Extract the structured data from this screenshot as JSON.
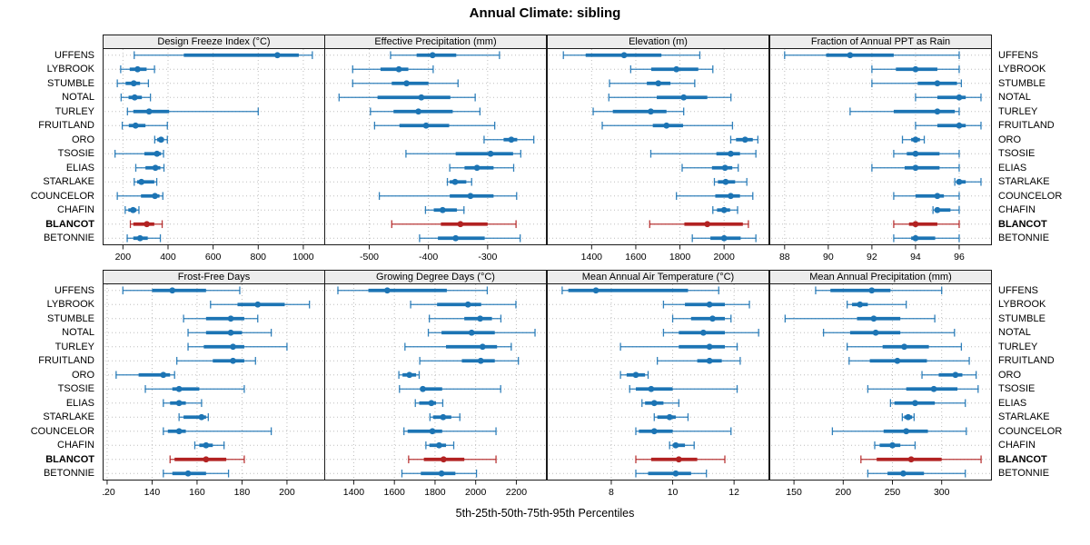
{
  "title": "Annual Climate: sibling",
  "caption": "5th-25th-50th-75th-95th Percentiles",
  "colors": {
    "series": "#1c74b4",
    "highlight": "#b22222",
    "grid": "#bdbdbd",
    "strip_bg": "#ededed",
    "border": "#1a1a1a"
  },
  "sites": [
    "UFFENS",
    "LYBROOK",
    "STUMBLE",
    "NOTAL",
    "TURLEY",
    "FRUITLAND",
    "ORO",
    "TSOSIE",
    "ELIAS",
    "STARLAKE",
    "COUNCELOR",
    "CHAFIN",
    "BLANCOT",
    "BETONNIE"
  ],
  "highlight_site": "BLANCOT",
  "percentile_order": [
    5,
    25,
    50,
    75,
    95
  ],
  "chart_data": [
    {
      "type": "error-bar",
      "title": "Design Freeze Index (°C)",
      "row": 0,
      "col": 0,
      "xlim": [
        110,
        1097
      ],
      "ticks": [
        200,
        400,
        600,
        800,
        1000
      ],
      "values": [
        [
          250,
          470,
          885,
          980,
          1040
        ],
        [
          190,
          230,
          265,
          305,
          340
        ],
        [
          175,
          212,
          248,
          276,
          313
        ],
        [
          192,
          225,
          252,
          284,
          322
        ],
        [
          220,
          246,
          316,
          405,
          800
        ],
        [
          197,
          226,
          256,
          300,
          397
        ],
        [
          341,
          352,
          369,
          382,
          397
        ],
        [
          165,
          295,
          351,
          369,
          380
        ],
        [
          257,
          300,
          344,
          366,
          382
        ],
        [
          250,
          263,
          282,
          339,
          350
        ],
        [
          175,
          280,
          342,
          362,
          377
        ],
        [
          210,
          224,
          245,
          260,
          271
        ],
        [
          233,
          246,
          306,
          339,
          374
        ],
        [
          219,
          246,
          276,
          310,
          366
        ]
      ]
    },
    {
      "type": "error-bar",
      "title": "Effective Precipitation (mm)",
      "row": 0,
      "col": 1,
      "xlim": [
        -576,
        -200
      ],
      "ticks": [
        -500,
        -400,
        -300
      ],
      "values": [
        [
          -464,
          -420,
          -393,
          -353,
          -280
        ],
        [
          -528,
          -481,
          -450,
          -434,
          -392
        ],
        [
          -528,
          -462,
          -437,
          -400,
          -350
        ],
        [
          -551,
          -486,
          -412,
          -363,
          -321
        ],
        [
          -498,
          -459,
          -417,
          -359,
          -313
        ],
        [
          -491,
          -449,
          -404,
          -365,
          -288
        ],
        [
          -306,
          -273,
          -260,
          -250,
          -222
        ],
        [
          -438,
          -354,
          -295,
          -257,
          -244
        ],
        [
          -364,
          -339,
          -318,
          -290,
          -256
        ],
        [
          -368,
          -364,
          -355,
          -336,
          -327
        ],
        [
          -483,
          -364,
          -329,
          -290,
          -251
        ],
        [
          -405,
          -391,
          -376,
          -352,
          -340
        ],
        [
          -462,
          -379,
          -346,
          -300,
          -252
        ],
        [
          -415,
          -384,
          -354,
          -305,
          -245
        ]
      ]
    },
    {
      "type": "error-bar",
      "title": "Elevation (m)",
      "row": 0,
      "col": 2,
      "xlim": [
        1197,
        2205
      ],
      "ticks": [
        1400,
        1600,
        1800,
        2000
      ],
      "values": [
        [
          1272,
          1373,
          1547,
          1716,
          1890
        ],
        [
          1577,
          1670,
          1784,
          1883,
          1949
        ],
        [
          1481,
          1650,
          1702,
          1757,
          1867
        ],
        [
          1478,
          1695,
          1817,
          1924,
          2031
        ],
        [
          1407,
          1496,
          1668,
          1739,
          1817
        ],
        [
          1448,
          1677,
          1739,
          1814,
          2038
        ],
        [
          2030,
          2054,
          2095,
          2130,
          2153
        ],
        [
          1668,
          1965,
          2030,
          2072,
          2144
        ],
        [
          1810,
          1945,
          2004,
          2037,
          2064
        ],
        [
          1956,
          1972,
          2007,
          2050,
          2103
        ],
        [
          1784,
          1960,
          2030,
          2072,
          2130
        ],
        [
          1949,
          1968,
          2000,
          2027,
          2061
        ],
        [
          1663,
          1820,
          1924,
          2085,
          2110
        ],
        [
          1856,
          1938,
          2000,
          2075,
          2144
        ]
      ]
    },
    {
      "type": "error-bar",
      "title": "Fraction of Annual PPT as Rain",
      "row": 0,
      "col": 3,
      "xlim": [
        87.3,
        97.5
      ],
      "ticks": [
        88,
        90,
        92,
        94,
        96
      ],
      "values": [
        [
          88.0,
          89.9,
          91.0,
          93.0,
          96.0
        ],
        [
          92.0,
          93.1,
          94.0,
          95.0,
          96.0
        ],
        [
          92.0,
          94.1,
          95.0,
          95.9,
          96.1
        ],
        [
          94.0,
          95.0,
          96.0,
          96.3,
          97.0
        ],
        [
          91.0,
          93.0,
          95.0,
          95.8,
          96.0
        ],
        [
          94.0,
          95.0,
          96.0,
          96.3,
          97.0
        ],
        [
          93.4,
          93.8,
          94.0,
          94.2,
          94.4
        ],
        [
          93.0,
          93.6,
          94.0,
          95.1,
          96.0
        ],
        [
          92.0,
          93.5,
          94.0,
          95.1,
          96.0
        ],
        [
          95.8,
          95.9,
          96.0,
          96.3,
          97.0
        ],
        [
          93.0,
          94.0,
          95.0,
          95.3,
          96.0
        ],
        [
          94.8,
          94.9,
          95.0,
          95.6,
          96.0
        ],
        [
          93.0,
          93.7,
          94.0,
          95.0,
          96.0
        ],
        [
          93.0,
          93.8,
          94.0,
          94.9,
          96.0
        ]
      ]
    },
    {
      "type": "error-bar",
      "title": "Frost-Free Days",
      "row": 1,
      "col": 0,
      "xlim": [
        118,
        217
      ],
      "ticks": [
        120,
        140,
        160,
        180,
        200
      ],
      "values": [
        [
          127,
          140,
          149,
          164,
          179
        ],
        [
          166,
          178,
          187,
          199,
          210
        ],
        [
          154,
          164,
          175,
          181,
          187
        ],
        [
          156,
          164,
          175,
          180,
          193
        ],
        [
          156,
          163,
          176,
          181,
          200
        ],
        [
          151,
          167,
          176,
          181,
          186
        ],
        [
          124,
          134,
          145,
          148,
          150
        ],
        [
          137,
          149,
          152,
          161,
          181
        ],
        [
          145,
          148,
          152,
          155,
          162
        ],
        [
          152,
          154,
          162,
          164,
          165
        ],
        [
          145,
          147,
          152,
          155,
          193
        ],
        [
          159,
          161,
          164,
          167,
          172
        ],
        [
          148,
          150,
          164,
          173,
          181
        ],
        [
          145,
          149,
          156,
          164,
          174
        ]
      ]
    },
    {
      "type": "error-bar",
      "title": "Growing Degree Days (°C)",
      "row": 1,
      "col": 1,
      "xlim": [
        1255,
        2350
      ],
      "ticks": [
        1400,
        1600,
        1800,
        2000,
        2200
      ],
      "values": [
        [
          1322,
          1472,
          1565,
          1858,
          2057
        ],
        [
          1680,
          1810,
          1962,
          2027,
          2198
        ],
        [
          1772,
          1944,
          2022,
          2080,
          2124
        ],
        [
          1767,
          1832,
          1980,
          2094,
          2292
        ],
        [
          1652,
          1854,
          2034,
          2105,
          2175
        ],
        [
          1725,
          1932,
          2025,
          2094,
          2210
        ],
        [
          1622,
          1640,
          1674,
          1707,
          1722
        ],
        [
          1625,
          1727,
          1740,
          1835,
          2123
        ],
        [
          1703,
          1722,
          1782,
          1805,
          1838
        ],
        [
          1775,
          1790,
          1840,
          1880,
          1922
        ],
        [
          1647,
          1665,
          1787,
          1835,
          2100
        ],
        [
          1755,
          1772,
          1820,
          1854,
          1892
        ],
        [
          1670,
          1745,
          1842,
          1944,
          2100
        ],
        [
          1637,
          1730,
          1832,
          1900,
          2004
        ]
      ]
    },
    {
      "type": "error-bar",
      "title": "Mean Annual Air Temperature (°C)",
      "row": 1,
      "col": 2,
      "xlim": [
        5.9,
        13.15
      ],
      "ticks": [
        8,
        10,
        12
      ],
      "values": [
        [
          6.4,
          6.6,
          7.5,
          10.5,
          11.5
        ],
        [
          9.7,
          10.4,
          11.2,
          11.7,
          12.5
        ],
        [
          10.0,
          10.6,
          11.3,
          11.7,
          11.9
        ],
        [
          9.7,
          10.2,
          11.0,
          11.7,
          12.8
        ],
        [
          8.3,
          10.2,
          11.2,
          11.7,
          12.1
        ],
        [
          9.5,
          10.8,
          11.2,
          11.6,
          12.2
        ],
        [
          8.3,
          8.5,
          8.8,
          9.1,
          9.2
        ],
        [
          8.6,
          8.8,
          9.3,
          10.0,
          12.1
        ],
        [
          9.0,
          9.1,
          9.4,
          9.7,
          10.2
        ],
        [
          9.4,
          9.5,
          9.9,
          10.1,
          10.5
        ],
        [
          8.8,
          8.9,
          9.4,
          10.0,
          11.9
        ],
        [
          9.9,
          10.0,
          10.1,
          10.4,
          10.7
        ],
        [
          8.8,
          9.3,
          10.2,
          10.8,
          11.7
        ],
        [
          8.8,
          9.2,
          10.1,
          10.6,
          11.1
        ]
      ]
    },
    {
      "type": "error-bar",
      "title": "Mean Annual Precipitation (mm)",
      "row": 1,
      "col": 3,
      "xlim": [
        125,
        351
      ],
      "ticks": [
        150,
        200,
        250,
        300
      ],
      "values": [
        [
          172,
          187,
          229,
          248,
          300
        ],
        [
          204,
          209,
          217,
          225,
          264
        ],
        [
          141,
          214,
          231,
          258,
          293
        ],
        [
          180,
          207,
          233,
          258,
          313
        ],
        [
          204,
          240,
          262,
          287,
          320
        ],
        [
          206,
          227,
          255,
          285,
          328
        ],
        [
          280,
          297,
          314,
          321,
          335
        ],
        [
          225,
          264,
          292,
          316,
          337
        ],
        [
          248,
          252,
          273,
          293,
          324
        ],
        [
          260,
          262,
          266,
          270,
          272
        ],
        [
          189,
          241,
          264,
          286,
          325
        ],
        [
          232,
          237,
          250,
          258,
          273
        ],
        [
          218,
          234,
          269,
          300,
          340
        ],
        [
          225,
          245,
          261,
          282,
          324
        ]
      ]
    }
  ]
}
